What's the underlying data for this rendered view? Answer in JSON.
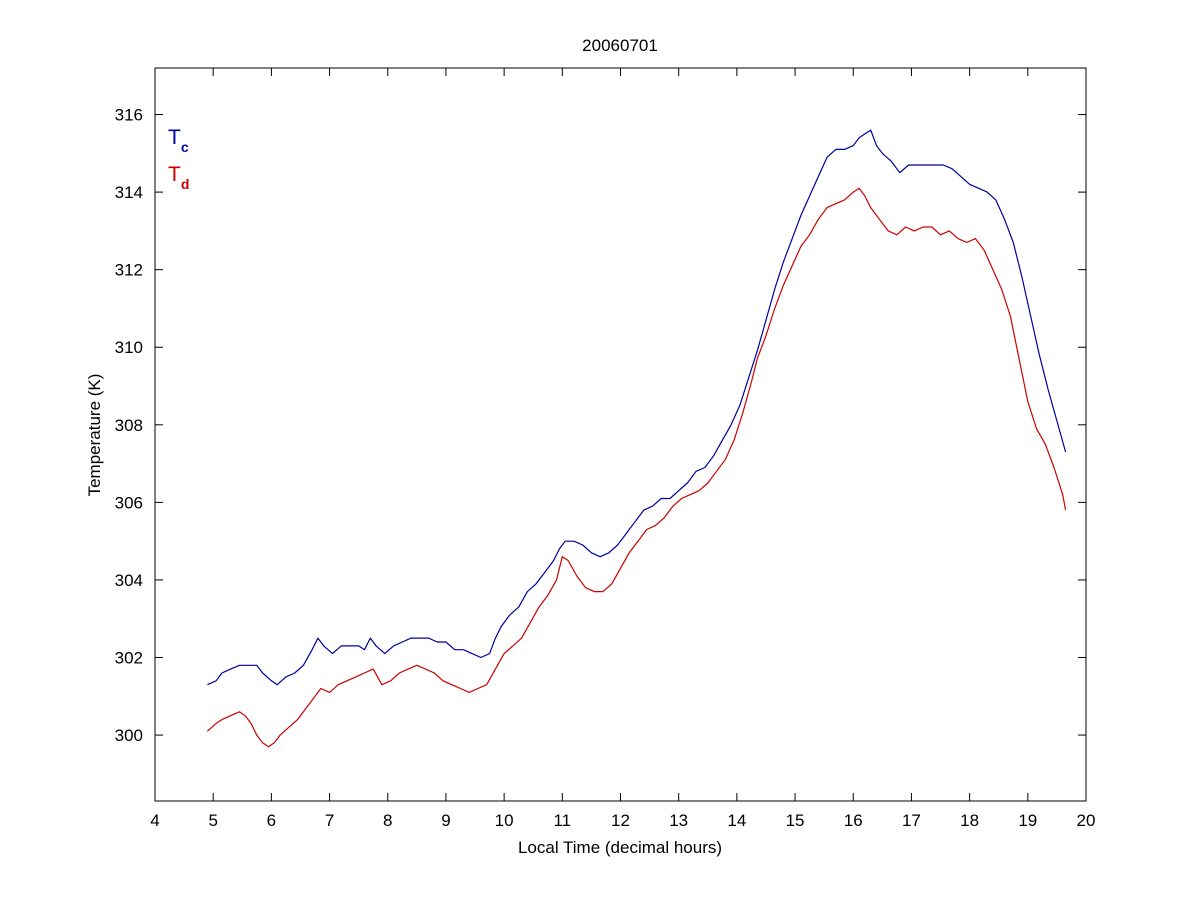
{
  "chart_data": {
    "type": "line",
    "title": "20060701",
    "xlabel": "Local Time (decimal hours)",
    "ylabel": "Temperature (K)",
    "xlim": [
      4,
      20
    ],
    "ylim": [
      298.3,
      317.2
    ],
    "xticks": [
      4,
      5,
      6,
      7,
      8,
      9,
      10,
      11,
      12,
      13,
      14,
      15,
      16,
      17,
      18,
      19,
      20
    ],
    "yticks": [
      300,
      302,
      304,
      306,
      308,
      310,
      312,
      314,
      316
    ],
    "grid": false,
    "legend_position": "top-left",
    "series": [
      {
        "name": "Tc",
        "legend_main": "T",
        "legend_sub": "c",
        "color": "#0000a0",
        "x": [
          4.9,
          5.05,
          5.15,
          5.3,
          5.45,
          5.6,
          5.75,
          5.85,
          6.0,
          6.1,
          6.25,
          6.4,
          6.55,
          6.7,
          6.8,
          6.9,
          7.05,
          7.2,
          7.35,
          7.5,
          7.6,
          7.7,
          7.8,
          7.95,
          8.1,
          8.25,
          8.4,
          8.55,
          8.7,
          8.85,
          9.0,
          9.15,
          9.3,
          9.45,
          9.6,
          9.75,
          9.85,
          9.95,
          10.1,
          10.25,
          10.4,
          10.55,
          10.7,
          10.85,
          10.95,
          11.05,
          11.2,
          11.35,
          11.5,
          11.65,
          11.8,
          11.95,
          12.1,
          12.25,
          12.4,
          12.55,
          12.7,
          12.85,
          13.0,
          13.15,
          13.3,
          13.45,
          13.6,
          13.75,
          13.9,
          14.05,
          14.2,
          14.35,
          14.5,
          14.65,
          14.8,
          14.95,
          15.1,
          15.25,
          15.4,
          15.55,
          15.7,
          15.85,
          16.0,
          16.1,
          16.2,
          16.3,
          16.4,
          16.5,
          16.65,
          16.8,
          16.95,
          17.1,
          17.25,
          17.4,
          17.55,
          17.7,
          17.85,
          18.0,
          18.15,
          18.3,
          18.45,
          18.6,
          18.75,
          18.9,
          19.05,
          19.2,
          19.35,
          19.5,
          19.65
        ],
        "y": [
          301.3,
          301.4,
          301.6,
          301.7,
          301.8,
          301.8,
          301.8,
          301.6,
          301.4,
          301.3,
          301.5,
          301.6,
          301.8,
          302.2,
          302.5,
          302.3,
          302.1,
          302.3,
          302.3,
          302.3,
          302.2,
          302.5,
          302.3,
          302.1,
          302.3,
          302.4,
          302.5,
          302.5,
          302.5,
          302.4,
          302.4,
          302.2,
          302.2,
          302.1,
          302.0,
          302.1,
          302.5,
          302.8,
          303.1,
          303.3,
          303.7,
          303.9,
          304.2,
          304.5,
          304.8,
          305.0,
          305.0,
          304.9,
          304.7,
          304.6,
          304.7,
          304.9,
          305.2,
          305.5,
          305.8,
          305.9,
          306.1,
          306.1,
          306.3,
          306.5,
          306.8,
          306.9,
          307.2,
          307.6,
          308.0,
          308.5,
          309.2,
          309.9,
          310.7,
          311.5,
          312.2,
          312.8,
          313.4,
          313.9,
          314.4,
          314.9,
          315.1,
          315.1,
          315.2,
          315.4,
          315.5,
          315.6,
          315.2,
          315.0,
          314.8,
          314.5,
          314.7,
          314.7,
          314.7,
          314.7,
          314.7,
          314.6,
          314.4,
          314.2,
          314.1,
          314.0,
          313.8,
          313.3,
          312.7,
          311.8,
          310.8,
          309.8,
          308.9,
          308.1,
          307.3
        ]
      },
      {
        "name": "Td",
        "legend_main": "T",
        "legend_sub": "d",
        "color": "#cc0000",
        "x": [
          4.9,
          5.05,
          5.15,
          5.3,
          5.45,
          5.55,
          5.65,
          5.75,
          5.85,
          5.95,
          6.05,
          6.15,
          6.3,
          6.45,
          6.6,
          6.75,
          6.85,
          7.0,
          7.15,
          7.3,
          7.45,
          7.6,
          7.75,
          7.9,
          8.05,
          8.2,
          8.35,
          8.5,
          8.65,
          8.8,
          8.95,
          9.1,
          9.25,
          9.4,
          9.55,
          9.7,
          9.85,
          10.0,
          10.15,
          10.3,
          10.45,
          10.6,
          10.75,
          10.9,
          11.0,
          11.1,
          11.25,
          11.4,
          11.55,
          11.7,
          11.85,
          12.0,
          12.15,
          12.3,
          12.45,
          12.6,
          12.75,
          12.9,
          13.05,
          13.2,
          13.35,
          13.5,
          13.65,
          13.8,
          13.95,
          14.1,
          14.25,
          14.35,
          14.5,
          14.65,
          14.8,
          14.95,
          15.1,
          15.25,
          15.4,
          15.55,
          15.7,
          15.85,
          16.0,
          16.1,
          16.2,
          16.3,
          16.45,
          16.6,
          16.75,
          16.9,
          17.05,
          17.2,
          17.35,
          17.5,
          17.65,
          17.8,
          17.95,
          18.1,
          18.25,
          18.4,
          18.55,
          18.7,
          18.85,
          19.0,
          19.15,
          19.3,
          19.45,
          19.6,
          19.65
        ],
        "y": [
          300.1,
          300.3,
          300.4,
          300.5,
          300.6,
          300.5,
          300.3,
          300.0,
          299.8,
          299.7,
          299.8,
          300.0,
          300.2,
          300.4,
          300.7,
          301.0,
          301.2,
          301.1,
          301.3,
          301.4,
          301.5,
          301.6,
          301.7,
          301.3,
          301.4,
          301.6,
          301.7,
          301.8,
          301.7,
          301.6,
          301.4,
          301.3,
          301.2,
          301.1,
          301.2,
          301.3,
          301.7,
          302.1,
          302.3,
          302.5,
          302.9,
          303.3,
          303.6,
          304.0,
          304.6,
          304.5,
          304.1,
          303.8,
          303.7,
          303.7,
          303.9,
          304.3,
          304.7,
          305.0,
          305.3,
          305.4,
          305.6,
          305.9,
          306.1,
          306.2,
          306.3,
          306.5,
          306.8,
          307.1,
          307.6,
          308.3,
          309.1,
          309.7,
          310.3,
          311.0,
          311.6,
          312.1,
          312.6,
          312.9,
          313.3,
          313.6,
          313.7,
          313.8,
          314.0,
          314.1,
          313.9,
          313.6,
          313.3,
          313.0,
          312.9,
          313.1,
          313.0,
          313.1,
          313.1,
          312.9,
          313.0,
          312.8,
          312.7,
          312.8,
          312.5,
          312.0,
          311.5,
          310.8,
          309.7,
          308.6,
          307.9,
          307.5,
          306.9,
          306.2,
          305.8
        ]
      }
    ]
  }
}
